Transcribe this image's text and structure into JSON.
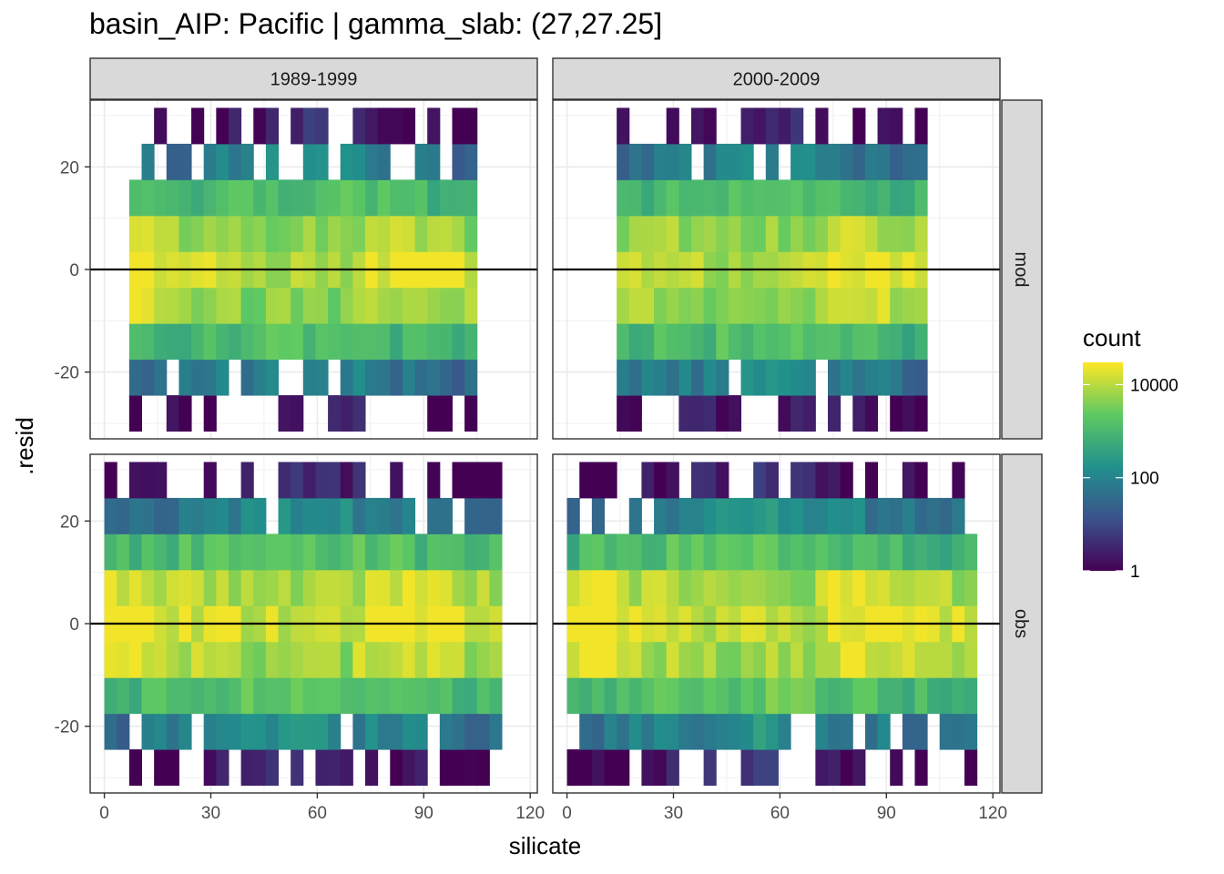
{
  "title": "basin_AIP: Pacific | gamma_slab: (27,27.25]",
  "chart_data": {
    "type": "heatmap",
    "xlabel": "silicate",
    "ylabel": ".resid",
    "xlim": [
      -4,
      122
    ],
    "ylim": [
      -33,
      33
    ],
    "x_ticks": [
      0,
      30,
      60,
      90,
      120
    ],
    "x_tick_labels": [
      "0",
      "30",
      "60",
      "90",
      "120"
    ],
    "y_ticks": [
      -20,
      0,
      20
    ],
    "y_tick_labels": [
      "-20",
      "0",
      "20"
    ],
    "x_bin_width": 3.5,
    "y_bin_width": 7,
    "y_bin_centers": [
      -28,
      -21,
      -14,
      -7,
      0,
      7,
      14,
      21,
      28
    ],
    "hline": 0,
    "col_facets": [
      "1989-1999",
      "2000-2009"
    ],
    "row_facets": [
      "mod",
      "obs"
    ],
    "legend": {
      "title": "count",
      "scale": "log10",
      "breaks": [
        1,
        100,
        10000
      ],
      "break_labels": [
        "1",
        "100",
        "10000"
      ],
      "max": 30000,
      "colors": [
        "#440154",
        "#3b528b",
        "#21918c",
        "#5ec962",
        "#fde725"
      ],
      "position": "right"
    },
    "panels": [
      {
        "col": "1989-1999",
        "row": "mod",
        "x_bin_start": 7,
        "y_bin_start": -28,
        "rows_log_count": [
          "...........................................2..........................1...0.....................1..1........",
          ".............................1..1..................0..................1..2..1..1..3..3..3..3.2.......1..1......",
          "...........................2..3..3..3..3..3..3..3..3..2.....1..1......2..2..3..3..3..3..3..3..3..3..2........",
          "...........................2..3..3..3..3..3..3..3..3..3..3..2..2..2..3..3..3..3..3..3..3..3..3..3..2.........",
          "...........................2..3..4..4..4..4..3..3..3..3..3..4..4..4..4..4..4..4..4..4..4..4..4..4..4..3.......",
          "...........................2..3..3..3..3..3..3..3..3..3..3..3..3..3..3..3..3..3..3..3..3..3..3..3..3..2.......",
          "...........................2..2..2..2..2..2..2..2..2..2..2..2..2..2..2..2..2..2..2..2..2..2..2..2..2..2.......",
          "...........................1..1..1..0..1..0..0..1..1..1..1..1..1..1..1..1..1..1..1..1..0..0..1..1..1..1.......",
          "................................................................................................................."
        ]
      }
    ]
  }
}
